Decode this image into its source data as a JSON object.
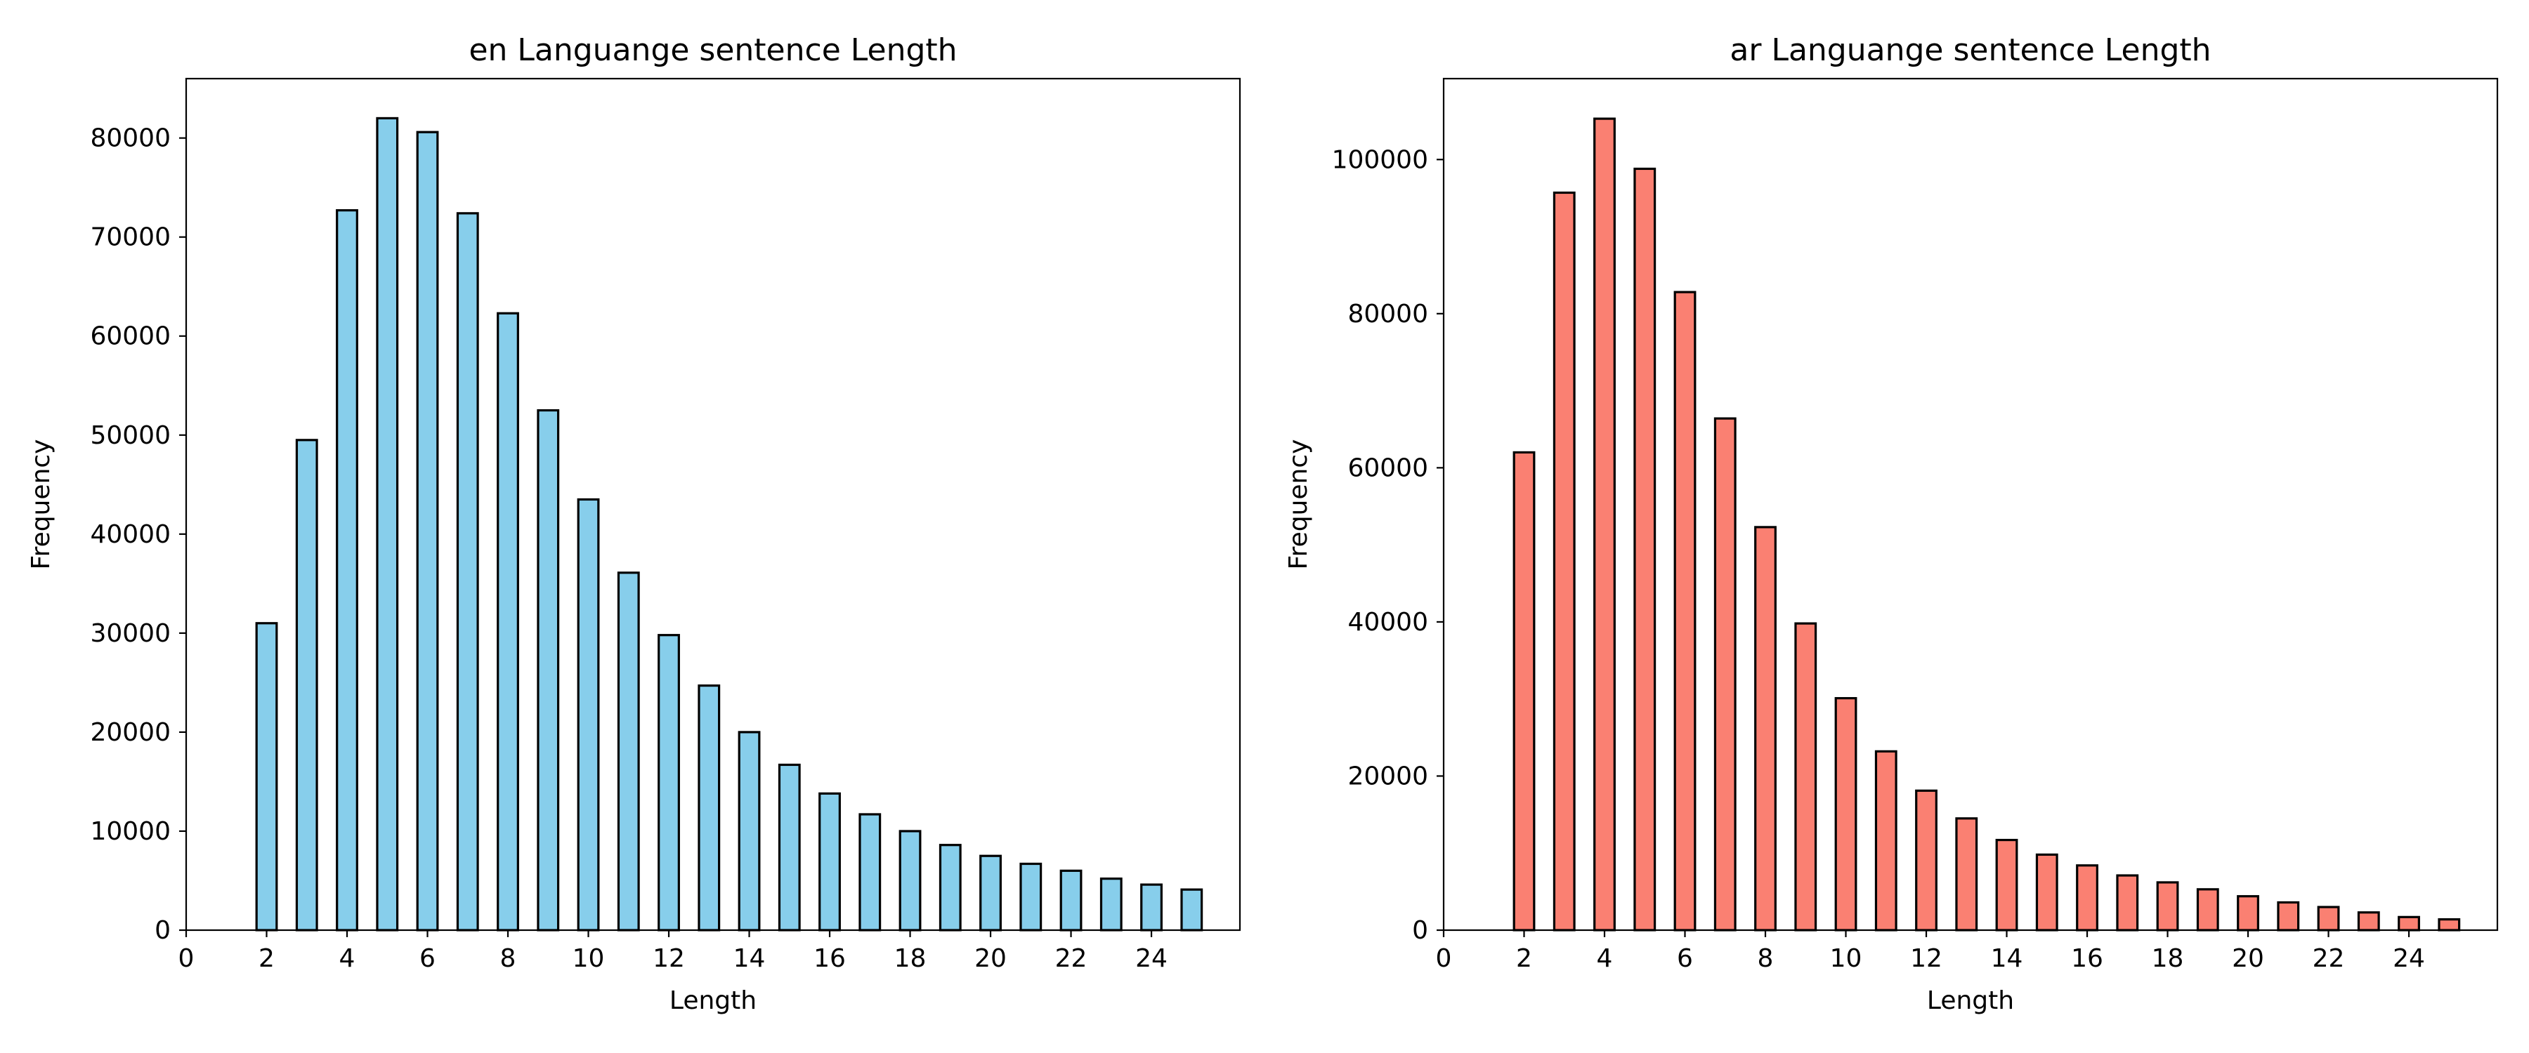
{
  "chart_data": [
    {
      "type": "bar",
      "title": "en Languange sentence Length",
      "xlabel": "Length",
      "ylabel": "Frequency",
      "color": "#87CEEB",
      "edge_color": "#000000",
      "xlim": [
        0,
        26.2
      ],
      "ylim": [
        0,
        86000
      ],
      "xticks": [
        0,
        2,
        4,
        6,
        8,
        10,
        12,
        14,
        16,
        18,
        20,
        22,
        24
      ],
      "yticks": [
        0,
        10000,
        20000,
        30000,
        40000,
        50000,
        60000,
        70000,
        80000
      ],
      "x": [
        2,
        3,
        4,
        5,
        6,
        7,
        8,
        9,
        10,
        11,
        12,
        13,
        14,
        15,
        16,
        17,
        18,
        19,
        20,
        21,
        22,
        23,
        24,
        25
      ],
      "values": [
        31000,
        49500,
        72700,
        82000,
        80600,
        72400,
        62300,
        52500,
        43500,
        36100,
        29800,
        24700,
        20000,
        16700,
        13800,
        11700,
        10000,
        8600,
        7500,
        6700,
        6000,
        5200,
        4600,
        4100
      ]
    },
    {
      "type": "bar",
      "title": "ar Languange sentence Length",
      "xlabel": "Length",
      "ylabel": "Frequency",
      "color": "#FA8072",
      "edge_color": "#000000",
      "xlim": [
        0,
        26.2
      ],
      "ylim": [
        0,
        110500
      ],
      "xticks": [
        0,
        2,
        4,
        6,
        8,
        10,
        12,
        14,
        16,
        18,
        20,
        22,
        24
      ],
      "yticks": [
        0,
        20000,
        40000,
        60000,
        80000,
        100000
      ],
      "x": [
        2,
        3,
        4,
        5,
        6,
        7,
        8,
        9,
        10,
        11,
        12,
        13,
        14,
        15,
        16,
        17,
        18,
        19,
        20,
        21,
        22,
        23,
        24,
        25
      ],
      "values": [
        62000,
        95700,
        105300,
        98800,
        82800,
        66400,
        52300,
        39800,
        30100,
        23200,
        18100,
        14500,
        11700,
        9800,
        8400,
        7100,
        6200,
        5300,
        4400,
        3600,
        3000,
        2300,
        1700,
        1400
      ]
    }
  ]
}
